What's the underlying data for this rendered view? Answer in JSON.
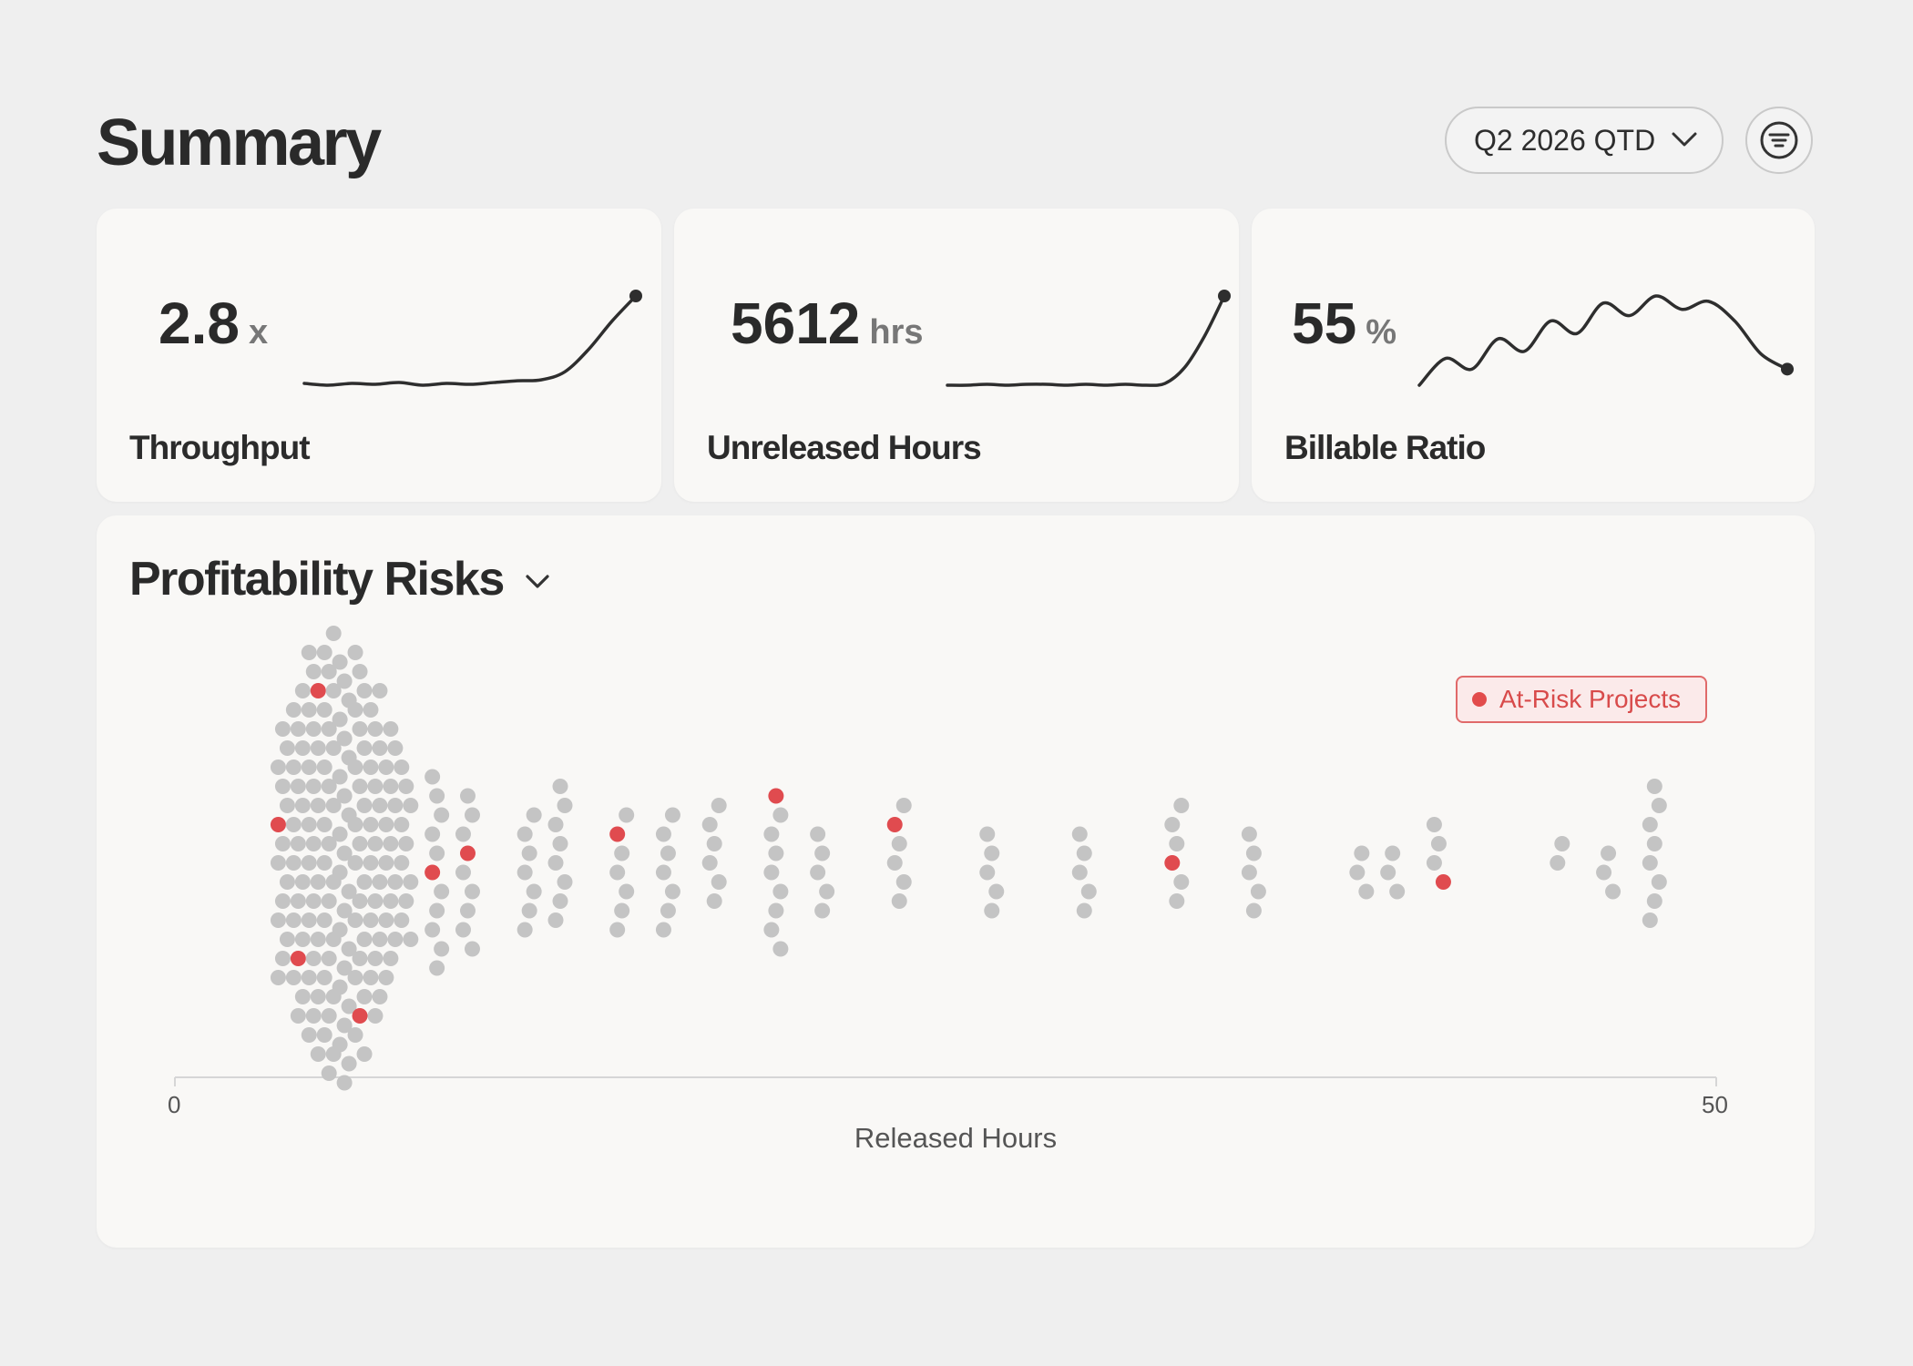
{
  "header": {
    "title": "Summary",
    "period_label": "Q2 2026 QTD",
    "filter_icon": "filter-icon"
  },
  "kpis": [
    {
      "value": "2.8",
      "unit": "x",
      "label": "Throughput",
      "trend": [
        0.02,
        0.0,
        0.02,
        0.01,
        0.03,
        0.0,
        0.02,
        0.01,
        0.03,
        0.05,
        0.06,
        0.15,
        0.4,
        0.72,
        1.0
      ]
    },
    {
      "value": "5612",
      "unit": "hrs",
      "label": "Unreleased Hours",
      "trend": [
        0.0,
        0.0,
        0.01,
        0.0,
        0.01,
        0.01,
        0.0,
        0.01,
        0.0,
        0.01,
        0.0,
        0.02,
        0.2,
        0.55,
        1.0
      ]
    },
    {
      "value": "55",
      "unit": "%",
      "label": "Billable Ratio",
      "trend": [
        0.0,
        0.3,
        0.18,
        0.52,
        0.38,
        0.72,
        0.58,
        0.92,
        0.78,
        1.0,
        0.85,
        0.94,
        0.72,
        0.35,
        0.18
      ]
    }
  ],
  "colors": {
    "at_risk": "#e04b4f",
    "normal": "#c4c4c4",
    "line": "#2e2e2e"
  },
  "panel": {
    "title": "Profitability Risks",
    "legend_label": "At-Risk Projects"
  },
  "chart_data": {
    "type": "scatter",
    "title": "Profitability Risks",
    "xlabel": "Released Hours",
    "xlim": [
      0,
      50
    ],
    "x_ticks": [
      "0",
      "50"
    ],
    "legend": [
      {
        "name": "At-Risk Projects",
        "color": "#e04b4f"
      }
    ],
    "legend_placement": "top-right",
    "groups": [
      {
        "x": 3.5,
        "count": 14,
        "risk": 1
      },
      {
        "x": 4.0,
        "count": 18,
        "risk": 1
      },
      {
        "x": 4.5,
        "count": 22,
        "risk": 1
      },
      {
        "x": 5.0,
        "count": 24,
        "risk": 0
      },
      {
        "x": 5.5,
        "count": 23,
        "risk": 0
      },
      {
        "x": 6.0,
        "count": 22,
        "risk": 1
      },
      {
        "x": 6.5,
        "count": 18,
        "risk": 0
      },
      {
        "x": 7.0,
        "count": 14,
        "risk": 0
      },
      {
        "x": 7.5,
        "count": 10,
        "risk": 0
      },
      {
        "x": 8.5,
        "count": 11,
        "risk": 1
      },
      {
        "x": 9.5,
        "count": 9,
        "risk": 1
      },
      {
        "x": 11.5,
        "count": 7,
        "risk": 0
      },
      {
        "x": 12.5,
        "count": 8,
        "risk": 0
      },
      {
        "x": 14.5,
        "count": 7,
        "risk": 1
      },
      {
        "x": 16.0,
        "count": 7,
        "risk": 0
      },
      {
        "x": 17.5,
        "count": 6,
        "risk": 0
      },
      {
        "x": 19.5,
        "count": 9,
        "risk": 1
      },
      {
        "x": 21.0,
        "count": 5,
        "risk": 0
      },
      {
        "x": 23.5,
        "count": 6,
        "risk": 1
      },
      {
        "x": 26.5,
        "count": 5,
        "risk": 0
      },
      {
        "x": 29.5,
        "count": 5,
        "risk": 0
      },
      {
        "x": 32.5,
        "count": 6,
        "risk": 1
      },
      {
        "x": 35.0,
        "count": 5,
        "risk": 0
      },
      {
        "x": 38.5,
        "count": 3,
        "risk": 0
      },
      {
        "x": 39.5,
        "count": 3,
        "risk": 0
      },
      {
        "x": 41.0,
        "count": 4,
        "risk": 1
      },
      {
        "x": 45.0,
        "count": 2,
        "risk": 0
      },
      {
        "x": 46.5,
        "count": 3,
        "risk": 0
      },
      {
        "x": 48.0,
        "count": 8,
        "risk": 0
      }
    ]
  }
}
